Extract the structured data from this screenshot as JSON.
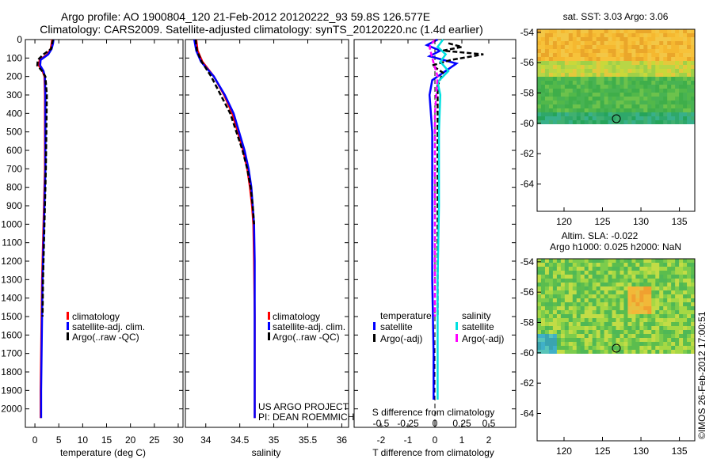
{
  "header": {
    "title_line1": "Argo profile: AO 1900804_120 21-Feb-2012 20120222_93 59.8S 126.577E",
    "title_line2": "Climatology: CARS2009. Satellite-adjusted climatology: synTS_20120220.nc (1.4d earlier)"
  },
  "colors": {
    "climatology": "#ff0000",
    "satellite": "#0000ff",
    "argo": "#000000",
    "salinity_satellite": "#00e0e0",
    "salinity_argo": "#ff00ff"
  },
  "chart_data": [
    {
      "type": "line",
      "id": "temperature",
      "xlabel": "temperature (deg C)",
      "xlim": [
        -2,
        31
      ],
      "ylim": [
        2100,
        0
      ],
      "xticks": [
        0,
        5,
        10,
        15,
        20,
        25,
        30
      ],
      "yticks": [
        0,
        100,
        200,
        300,
        400,
        500,
        600,
        700,
        800,
        900,
        1000,
        1100,
        1200,
        1300,
        1400,
        1500,
        1600,
        1700,
        1800,
        1900,
        2000
      ],
      "legend": [
        "climatology",
        "satellite-adj. clim.",
        "Argo(..raw -QC)"
      ],
      "series": [
        {
          "name": "climatology",
          "color": "#ff0000",
          "style": "solid",
          "x": [
            3.6,
            3.5,
            3.3,
            2.6,
            1.0,
            0.8,
            1.6,
            2.0,
            2.1,
            2.1,
            2.1,
            1.9,
            1.7,
            1.5,
            1.4,
            1.3,
            1.2,
            1.2
          ],
          "y": [
            0,
            20,
            50,
            80,
            110,
            140,
            170,
            200,
            300,
            500,
            700,
            900,
            1100,
            1300,
            1500,
            1700,
            1900,
            2050
          ]
        },
        {
          "name": "satellite-adj. clim.",
          "color": "#0000ff",
          "style": "solid",
          "x": [
            3.9,
            3.8,
            3.5,
            2.8,
            1.2,
            1.1,
            1.8,
            2.1,
            2.2,
            2.2,
            2.2,
            2.0,
            1.8,
            1.6,
            1.5,
            1.4,
            1.3,
            1.3
          ],
          "y": [
            0,
            20,
            50,
            80,
            110,
            140,
            170,
            200,
            300,
            500,
            700,
            900,
            1100,
            1300,
            1500,
            1700,
            1900,
            2050
          ]
        },
        {
          "name": "Argo(..raw -QC)",
          "color": "#000000",
          "style": "dash",
          "x": [
            3.8,
            3.6,
            3.4,
            1.8,
            0.6,
            0.5,
            1.5,
            2.2,
            2.5,
            2.4,
            2.3,
            2.1,
            1.9,
            1.7,
            1.6
          ],
          "y": [
            0,
            20,
            50,
            80,
            110,
            140,
            170,
            200,
            300,
            500,
            700,
            900,
            1100,
            1300,
            1500
          ]
        }
      ]
    },
    {
      "type": "line",
      "id": "salinity",
      "xlabel": "salinity",
      "xlim": [
        33.7,
        36.1
      ],
      "ylim": [
        2100,
        0
      ],
      "xticks": [
        34,
        34.5,
        35,
        35.5,
        36
      ],
      "legend": [
        "climatology",
        "satellite-adj. clim.",
        "Argo(..raw -QC)"
      ],
      "annotation": [
        "US ARGO PROJECT",
        "PI: DEAN ROEMMICH"
      ],
      "series": [
        {
          "name": "climatology",
          "color": "#ff0000",
          "style": "solid",
          "x": [
            33.86,
            33.88,
            33.95,
            34.12,
            34.27,
            34.39,
            34.47,
            34.55,
            34.61,
            34.65,
            34.68,
            34.7,
            34.71,
            34.72,
            34.72,
            34.72
          ],
          "y": [
            0,
            60,
            120,
            200,
            300,
            400,
            500,
            600,
            700,
            800,
            900,
            1000,
            1200,
            1500,
            1800,
            2050
          ]
        },
        {
          "name": "satellite-adj. clim.",
          "color": "#0000ff",
          "style": "solid",
          "x": [
            33.83,
            33.86,
            33.93,
            34.12,
            34.28,
            34.41,
            34.49,
            34.57,
            34.63,
            34.67,
            34.69,
            34.71,
            34.72,
            34.72,
            34.72,
            34.72
          ],
          "y": [
            0,
            60,
            120,
            200,
            300,
            400,
            500,
            600,
            700,
            800,
            900,
            1000,
            1200,
            1500,
            1800,
            2050
          ]
        },
        {
          "name": "Argo(..raw -QC)",
          "color": "#000000",
          "style": "dash",
          "x": [
            33.85,
            33.87,
            33.94,
            34.08,
            34.22,
            34.36,
            34.45,
            34.54,
            34.61,
            34.66,
            34.69,
            34.71
          ],
          "y": [
            0,
            60,
            120,
            200,
            300,
            400,
            500,
            600,
            700,
            800,
            900,
            1000
          ]
        }
      ]
    },
    {
      "type": "line",
      "id": "difference",
      "xlabel": "T difference from climatology",
      "xlabel_top": "S difference from climatology",
      "xlim": [
        -3,
        3
      ],
      "ylim": [
        2100,
        0
      ],
      "xticks": [
        -2,
        -1,
        0,
        1,
        2
      ],
      "xticks_s_labels": [
        "-0.5",
        "-0.25",
        "0",
        "0.25",
        "0.5"
      ],
      "legend_temperature": {
        "title": "temperature",
        "items": [
          "satellite",
          "Argo(-adj)"
        ]
      },
      "legend_salinity": {
        "title": "salinity",
        "items": [
          "satellite",
          "Argo(-adj)"
        ]
      },
      "series": [
        {
          "name": "temperature satellite",
          "color": "#0000ff",
          "style": "solid",
          "x": [
            0.1,
            -0.3,
            0.2,
            -0.2,
            0.8,
            0.4,
            -0.1,
            -0.2,
            -0.1,
            -0.1,
            -0.1,
            -0.05,
            -0.05
          ],
          "y": [
            0,
            30,
            60,
            90,
            130,
            170,
            220,
            300,
            500,
            900,
            1300,
            1700,
            1950
          ]
        },
        {
          "name": "temperature Argo(-adj)",
          "color": "#000000",
          "style": "dash",
          "x": [
            0.5,
            1.0,
            0.3,
            1.8,
            0.6,
            -0.1,
            0.3,
            0.1,
            0.1,
            0.1,
            0.1,
            0.1
          ],
          "y": [
            20,
            40,
            60,
            80,
            110,
            140,
            180,
            250,
            400,
            700,
            1000,
            1500
          ]
        },
        {
          "name": "salinity satellite",
          "color": "#00e0e0",
          "style": "solid",
          "x": [
            0.3,
            0.1,
            0.4,
            0.2,
            0.5,
            0.1,
            0.2,
            0.15,
            0.15,
            0.1,
            0.1
          ],
          "y": [
            0,
            40,
            80,
            120,
            170,
            230,
            300,
            500,
            900,
            1300,
            1950
          ]
        },
        {
          "name": "salinity Argo(-adj)",
          "color": "#ff00ff",
          "style": "dash",
          "x": [
            0.0,
            -0.2,
            -0.1,
            0.1,
            0.0,
            0.0,
            0.0,
            0.0
          ],
          "y": [
            0,
            40,
            100,
            200,
            400,
            700,
            1000,
            1500
          ]
        }
      ]
    },
    {
      "type": "heatmap",
      "id": "sst_map",
      "title": "sat. SST: 3.03 Argo: 3.06",
      "xticks": [
        120,
        125,
        130,
        135
      ],
      "yticks": [
        -54,
        -56,
        -58,
        -60,
        -62,
        -64
      ],
      "xlim": [
        116.5,
        137
      ],
      "ylim": [
        -65.8,
        -53.8
      ],
      "data_extent_lat": [
        -60.1,
        -53.8
      ],
      "marker": {
        "lon": 126.577,
        "lat": -59.8
      }
    },
    {
      "type": "heatmap",
      "id": "sla_map",
      "title_line1": "Altim. SLA: -0.022",
      "title_line2": "Argo h1000: 0.025 h2000: NaN",
      "xticks": [
        120,
        125,
        130,
        135
      ],
      "yticks": [
        -54,
        -56,
        -58,
        -60,
        -62,
        -64
      ],
      "xlim": [
        116.5,
        137
      ],
      "ylim": [
        -65.8,
        -53.8
      ],
      "data_extent_lat": [
        -60.1,
        -53.8
      ],
      "marker": {
        "lon": 126.577,
        "lat": -59.8
      }
    }
  ],
  "footer": {
    "stamp": "©IMOS 26-Feb-2012 17:00:51"
  }
}
